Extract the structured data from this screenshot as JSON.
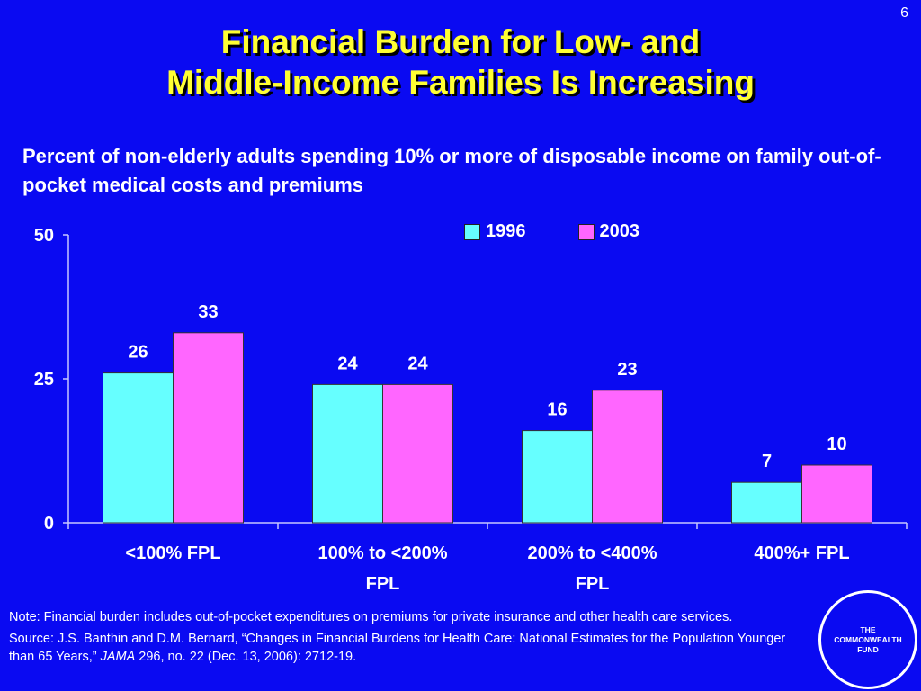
{
  "page_number": "6",
  "title_line1": "Financial Burden for Low- and",
  "title_line2": "Middle-Income Families Is Increasing",
  "subtitle": "Percent of non-elderly adults spending 10% or more of disposable income on family out-of-pocket medical costs and premiums",
  "colors": {
    "background": "#0a0af2",
    "title": "#ffff33",
    "series_1996": "#66ffff",
    "series_2003": "#ff66ff"
  },
  "chart_data": {
    "type": "bar",
    "categories": [
      [
        "<100% FPL"
      ],
      [
        "100% to <200%",
        "FPL"
      ],
      [
        "200% to <400%",
        "FPL"
      ],
      [
        "400%+ FPL"
      ]
    ],
    "series": [
      {
        "name": "1996",
        "values": [
          26,
          24,
          16,
          7
        ],
        "labels": [
          "26",
          "24",
          "16",
          "7"
        ],
        "color": "#66ffff"
      },
      {
        "name": "2003",
        "values": [
          33,
          24,
          23,
          10
        ],
        "labels": [
          "33",
          "24",
          "23",
          "10"
        ],
        "color": "#ff66ff"
      }
    ],
    "ylim": [
      0,
      50
    ],
    "yticks": [
      "0",
      "25",
      "50"
    ],
    "legend": "top-right",
    "grid": false
  },
  "note": "Note: Financial burden includes out-of-pocket expenditures on premiums for private insurance and other health care services.",
  "source": {
    "before": "Source: J.S. Banthin and D.M. Bernard, “Changes in Financial Burdens for Health Care: National Estimates for the Population Younger than 65 Years,” ",
    "journal": "JAMA",
    "after": " 296, no. 22 (Dec. 13, 2006): 2712-19."
  },
  "logo": "THE\nCOMMONWEALTH\nFUND"
}
